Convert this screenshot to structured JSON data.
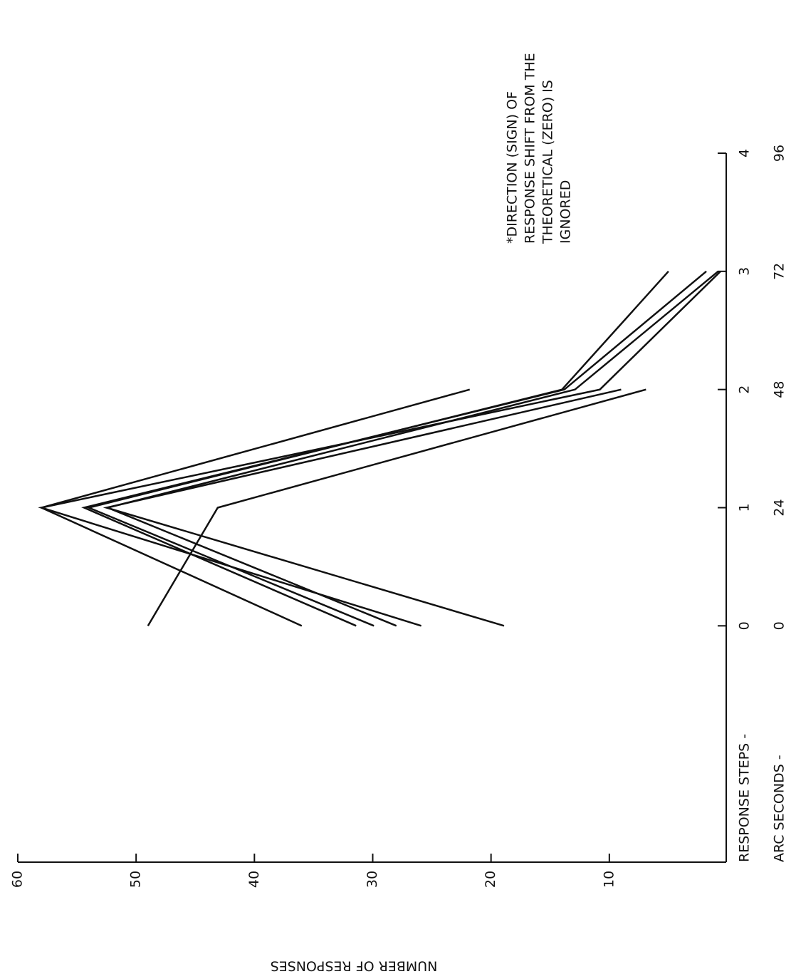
{
  "chart_data": {
    "type": "line",
    "x_label": "RESPONSE STEPS -",
    "x2_label": "ARC SECONDS -",
    "y_label": "NUMBER OF RESPONSES",
    "annotation": [
      "*DIRECTION (SIGN) OF",
      "RESPONSE SHIFT FROM THE",
      "THEORETICAL (ZERO) IS",
      "IGNORED"
    ],
    "x": [
      0,
      1,
      2,
      3
    ],
    "xlim": [
      -2,
      4
    ],
    "xticks": [
      0,
      1,
      2,
      3,
      4
    ],
    "x2lim": [
      -48,
      96
    ],
    "x2ticks": [
      0,
      24,
      48,
      72,
      96
    ],
    "ylim": [
      0,
      60
    ],
    "yticks": [
      10,
      20,
      30,
      40,
      50,
      60
    ],
    "color": "#111111",
    "series": [
      {
        "values": [
          49,
          43.1,
          6.9,
          null
        ]
      },
      {
        "values": [
          36,
          58,
          21.8,
          null
        ]
      },
      {
        "values": [
          31.4,
          54.4,
          13.8,
          1.8
        ]
      },
      {
        "values": [
          29.9,
          54,
          14,
          5
        ]
      },
      {
        "values": [
          28,
          52.4,
          12.9,
          0.8
        ]
      },
      {
        "values": [
          25.9,
          58,
          10.8,
          0.6
        ]
      },
      {
        "values": [
          18.9,
          52.5,
          9,
          null
        ]
      }
    ]
  }
}
